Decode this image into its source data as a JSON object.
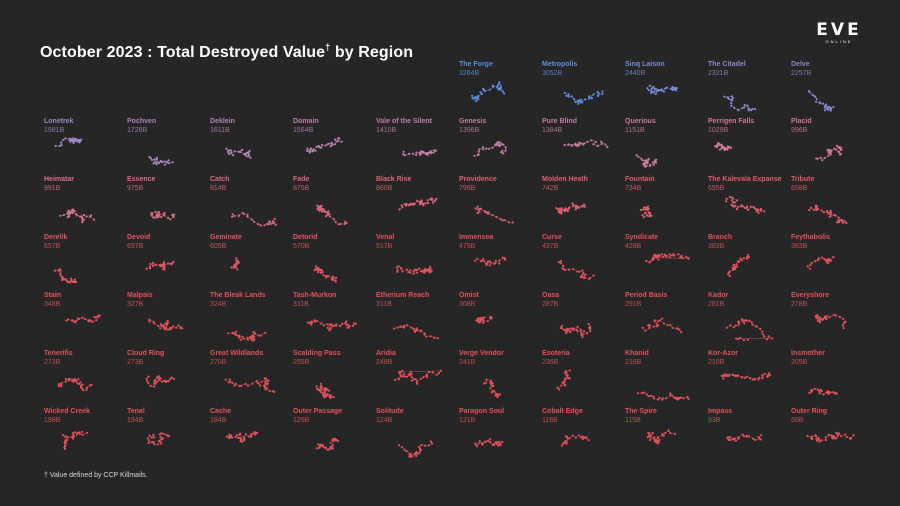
{
  "title_main": "October 2023 : Total Destroyed Value",
  "title_dagger": "†",
  "title_rest": " by Region",
  "logo_text": "EVE",
  "logo_sub": "ONLINE",
  "footnote": "† Value defined by CCP Killmails.",
  "colors": {
    "background": "#262626",
    "top5": "#5b8ee0",
    "purple": "#9f86c4",
    "mauve": "#c67b9c",
    "red": "#e0525a"
  },
  "chart_data": {
    "type": "small-multiples",
    "unit": "B",
    "regions": [
      {
        "name": "The Forge",
        "value": "3264B",
        "color": "#5b8ee0"
      },
      {
        "name": "Metropolis",
        "value": "3052B",
        "color": "#5b8ee0"
      },
      {
        "name": "Sinq Laison",
        "value": "2440B",
        "color": "#7a8bd8"
      },
      {
        "name": "The Citadel",
        "value": "2321B",
        "color": "#8a86cf"
      },
      {
        "name": "Delve",
        "value": "2257B",
        "color": "#8a86cf"
      },
      {
        "name": "Lonetrek",
        "value": "1981B",
        "color": "#9f86c4"
      },
      {
        "name": "Pochven",
        "value": "1728B",
        "color": "#a985be"
      },
      {
        "name": "Deklein",
        "value": "1611B",
        "color": "#b282b4"
      },
      {
        "name": "Domain",
        "value": "1564B",
        "color": "#b981ae"
      },
      {
        "name": "Vale of the Silent",
        "value": "1410B",
        "color": "#bf7fa8"
      },
      {
        "name": "Genesis",
        "value": "1396B",
        "color": "#c27ea4"
      },
      {
        "name": "Pure Blind",
        "value": "1384B",
        "color": "#c57da1"
      },
      {
        "name": "Querious",
        "value": "1151B",
        "color": "#c97c9b"
      },
      {
        "name": "Perrigen Falls",
        "value": "1029B",
        "color": "#cd7995"
      },
      {
        "name": "Placid",
        "value": "996B",
        "color": "#d0778f"
      },
      {
        "name": "Heimatar",
        "value": "991B",
        "color": "#d3728a"
      },
      {
        "name": "Essence",
        "value": "975B",
        "color": "#d66f84"
      },
      {
        "name": "Catch",
        "value": "914B",
        "color": "#d86b80"
      },
      {
        "name": "Fade",
        "value": "875B",
        "color": "#da687c"
      },
      {
        "name": "Black Rise",
        "value": "860B",
        "color": "#dc6578"
      },
      {
        "name": "Providence",
        "value": "796B",
        "color": "#dd6274"
      },
      {
        "name": "Molden Heath",
        "value": "742B",
        "color": "#de5f71"
      },
      {
        "name": "Fountain",
        "value": "734B",
        "color": "#df5d6e"
      },
      {
        "name": "The Kalevala Expanse",
        "value": "695B",
        "color": "#df5b6b"
      },
      {
        "name": "Tribute",
        "value": "658B",
        "color": "#e05968"
      },
      {
        "name": "Derelik",
        "value": "657B",
        "color": "#e05765"
      },
      {
        "name": "Devoid",
        "value": "657B",
        "color": "#e05765"
      },
      {
        "name": "Geminate",
        "value": "605B",
        "color": "#e05562"
      },
      {
        "name": "Detorid",
        "value": "570B",
        "color": "#e05460"
      },
      {
        "name": "Venal",
        "value": "517B",
        "color": "#e0535e"
      },
      {
        "name": "Immensea",
        "value": "475B",
        "color": "#e0525d"
      },
      {
        "name": "Curse",
        "value": "437B",
        "color": "#e0525c"
      },
      {
        "name": "Syndicate",
        "value": "428B",
        "color": "#e0525b"
      },
      {
        "name": "Branch",
        "value": "383B",
        "color": "#e0525a"
      },
      {
        "name": "Feythabolis",
        "value": "383B",
        "color": "#e0525a"
      },
      {
        "name": "Stain",
        "value": "348B",
        "color": "#e0525a"
      },
      {
        "name": "Malpais",
        "value": "327B",
        "color": "#e0525a"
      },
      {
        "name": "The Bleak Lands",
        "value": "324B",
        "color": "#e0525a"
      },
      {
        "name": "Tash-Murkon",
        "value": "311B",
        "color": "#e0525a"
      },
      {
        "name": "Etherium Reach",
        "value": "311B",
        "color": "#e0525a"
      },
      {
        "name": "Omist",
        "value": "308B",
        "color": "#e0525a"
      },
      {
        "name": "Oasa",
        "value": "287B",
        "color": "#e0525a"
      },
      {
        "name": "Period Basis",
        "value": "291B",
        "color": "#e0525a"
      },
      {
        "name": "Kador",
        "value": "281B",
        "color": "#e0525a"
      },
      {
        "name": "Everyshore",
        "value": "278B",
        "color": "#e0525a"
      },
      {
        "name": "Tenerifis",
        "value": "273B",
        "color": "#e0525a"
      },
      {
        "name": "Cloud Ring",
        "value": "273B",
        "color": "#e0525a"
      },
      {
        "name": "Great Wildlands",
        "value": "270B",
        "color": "#e0525a"
      },
      {
        "name": "Scalding Pass",
        "value": "255B",
        "color": "#e0525a"
      },
      {
        "name": "Aridia",
        "value": "248B",
        "color": "#e0525a"
      },
      {
        "name": "Verge Vendor",
        "value": "241B",
        "color": "#e0525a"
      },
      {
        "name": "Esoteria",
        "value": "236B",
        "color": "#e0525a"
      },
      {
        "name": "Khanid",
        "value": "216B",
        "color": "#e0525a"
      },
      {
        "name": "Kor-Azor",
        "value": "210B",
        "color": "#e0525a"
      },
      {
        "name": "Insmother",
        "value": "205B",
        "color": "#e0525a"
      },
      {
        "name": "Wicked Creek",
        "value": "198B",
        "color": "#e0525a"
      },
      {
        "name": "Tenal",
        "value": "194B",
        "color": "#e0525a"
      },
      {
        "name": "Cache",
        "value": "184B",
        "color": "#e0525a"
      },
      {
        "name": "Outer Passage",
        "value": "126B",
        "color": "#e0525a"
      },
      {
        "name": "Solitude",
        "value": "124B",
        "color": "#e0525a"
      },
      {
        "name": "Paragon Soul",
        "value": "121B",
        "color": "#e0525a"
      },
      {
        "name": "Cobalt Edge",
        "value": "118B",
        "color": "#e0525a"
      },
      {
        "name": "The Spire",
        "value": "115B",
        "color": "#e0525a"
      },
      {
        "name": "Impass",
        "value": "93B",
        "color": "#e0525a"
      },
      {
        "name": "Outer Ring",
        "value": "66B",
        "color": "#e0525a"
      }
    ]
  }
}
